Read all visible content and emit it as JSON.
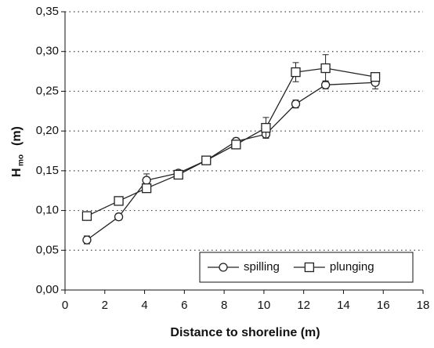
{
  "chart_data": {
    "type": "line",
    "xlabel": "Distance to shoreline (m)",
    "ylabel_main": "H",
    "ylabel_sub": "mo",
    "ylabel_unit": "(m)",
    "x": [
      1.1,
      2.7,
      4.1,
      5.7,
      7.1,
      8.6,
      10.1,
      11.6,
      13.1,
      15.6
    ],
    "series": [
      {
        "name": "spilling",
        "color": "#222222",
        "marker": "circle",
        "values": [
          0.063,
          0.092,
          0.138,
          0.147,
          0.163,
          0.187,
          0.196,
          0.234,
          0.258,
          0.261
        ],
        "errors": [
          0.005,
          0.004,
          0.008,
          0.003,
          0.003,
          0.004,
          0.005,
          0.005,
          0.005,
          0.008
        ]
      },
      {
        "name": "plunging",
        "color": "#222222",
        "marker": "square",
        "values": [
          0.093,
          0.112,
          0.128,
          0.145,
          0.163,
          0.183,
          0.204,
          0.274,
          0.279,
          0.268
        ],
        "errors": [
          0.004,
          0.003,
          0.005,
          0.003,
          0.003,
          0.004,
          0.013,
          0.012,
          0.017,
          0.004
        ]
      }
    ],
    "xlim": [
      0,
      18
    ],
    "xticks": [
      0,
      2,
      4,
      6,
      8,
      10,
      12,
      14,
      16,
      18
    ],
    "ylim": [
      0,
      0.35
    ],
    "yticks": [
      {
        "value": 0,
        "label": "0,00"
      },
      {
        "value": 0.05,
        "label": "0,05"
      },
      {
        "value": 0.1,
        "label": "0,10"
      },
      {
        "value": 0.15,
        "label": "0,15"
      },
      {
        "value": 0.2,
        "label": "0,20"
      },
      {
        "value": 0.25,
        "label": "0,25"
      },
      {
        "value": 0.3,
        "label": "0,30"
      },
      {
        "value": 0.35,
        "label": "0,35"
      }
    ],
    "grid": true,
    "legend": "lower right"
  }
}
